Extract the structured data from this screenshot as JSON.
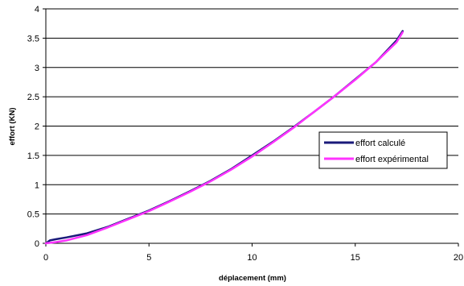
{
  "chart_data": {
    "type": "line",
    "title": "",
    "xlabel": "déplacement (mm)",
    "ylabel": "effort (KN)",
    "xlim": [
      0,
      20
    ],
    "ylim": [
      0,
      4
    ],
    "x_ticks": [
      "0",
      "5",
      "10",
      "15",
      "20"
    ],
    "y_ticks": [
      "0",
      "0.5",
      "1",
      "1.5",
      "2",
      "2.5",
      "3",
      "3.5",
      "4"
    ],
    "grid": "horizontal",
    "legend_position": "right",
    "series": [
      {
        "name": "effort calculé",
        "color": "#1a1a7a",
        "x": [
          0,
          0.2,
          0.5,
          1,
          2,
          3,
          4,
          5,
          6,
          7,
          8,
          9,
          10,
          11,
          12,
          13,
          14,
          15,
          16,
          17,
          17.3
        ],
        "y": [
          0,
          0.05,
          0.07,
          0.1,
          0.17,
          0.28,
          0.42,
          0.56,
          0.72,
          0.89,
          1.07,
          1.27,
          1.5,
          1.73,
          1.98,
          2.24,
          2.51,
          2.8,
          3.09,
          3.46,
          3.62
        ]
      },
      {
        "name": "effort expérimental",
        "color": "#ff33ff",
        "x": [
          0,
          0.5,
          1,
          2,
          3,
          4,
          5,
          6,
          7,
          8,
          9,
          10,
          11,
          12,
          13,
          14,
          15,
          16,
          17,
          17.3
        ],
        "y": [
          0,
          0.02,
          0.05,
          0.14,
          0.27,
          0.41,
          0.55,
          0.71,
          0.88,
          1.06,
          1.26,
          1.48,
          1.72,
          1.97,
          2.24,
          2.51,
          2.79,
          3.09,
          3.43,
          3.6
        ]
      }
    ]
  }
}
